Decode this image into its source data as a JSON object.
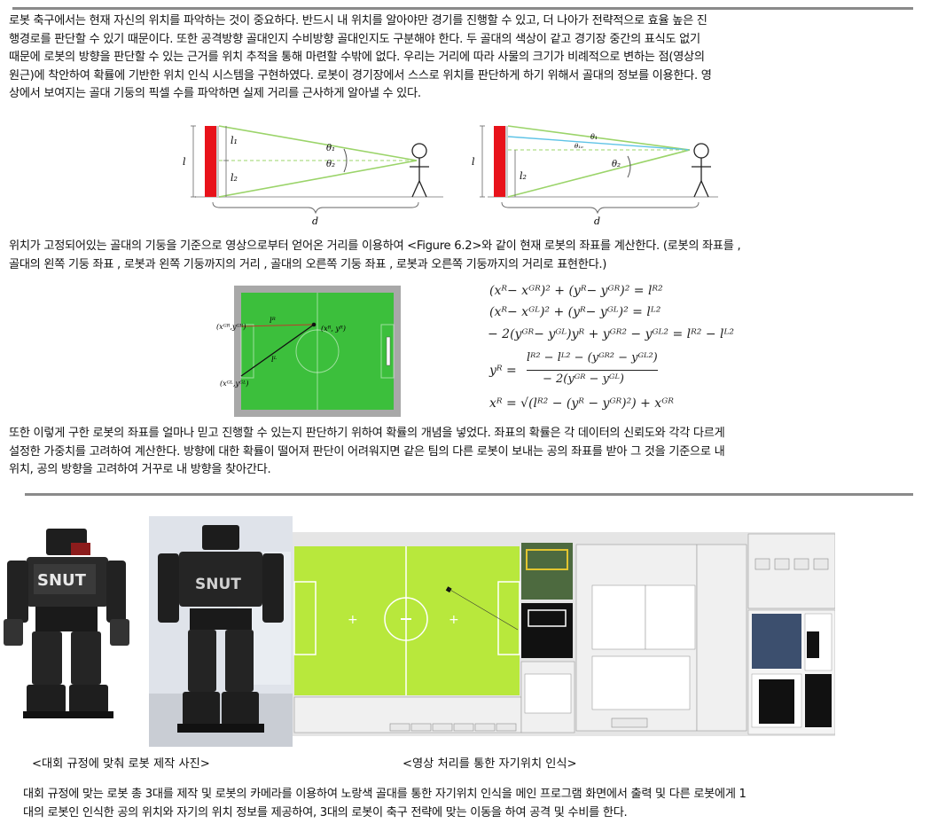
{
  "intro_text": "로봇 축구에서는 현재 자신의 위치를 파악하는 것이 중요하다. 반드시 내 위치를 알아야만 경기를 진행할 수 있고, 더 나아가 전략적으로 효율 높은 진\n행경로를 판단할 수 있기 때문이다. 또한 공격방향 골대인지 수비방향 골대인지도 구분해야 한다. 두 골대의 색상이 같고 경기장 중간의 표식도 없기\n때문에 로봇의 방향을 판단할 수 있는 근거를 위치 추적을 통해 마련할 수밖에 없다. 우리는 거리에 따라 사물의 크기가 비례적으로 변하는 점(영상의\n원근)에 착안하여 확률에 기반한 위치 인식 시스템을 구현하였다. 로봇이 경기장에서 스스로 위치를 판단하게 하기 위해서 골대의 정보를 이용한다. 영\n상에서 보여지는 골대 기둥의 픽셀 수를 파악하면 실제 거리를 근사하게 알아낼 수 있다.",
  "position_text": "위치가 고정되어있는 골대의 기둥을 기준으로 영상으로부터 얻어온 거리를 이용하여 <Figure 6.2>와 같이 현재 로봇의 좌표를 계산한다. (로봇의 좌표를 ,\n골대의 왼쪽 기둥 좌표 , 로봇과 왼쪽 기둥까지의 거리 , 골대의 오른쪽 기둥 좌표 , 로봇과 오른쪽 기둥까지의 거리로 표현한다.)",
  "probability_text": "또한 이렇게 구한 로봇의 좌표를 얼마나 믿고 진행할 수 있는지 판단하기 위하여 확률의 개념을 넣었다. 좌표의 확률은 각 데이터의 신뢰도와 각각 다르게\n설정한 가중치를 고려하여 계산한다. 방향에 대한 확률이 떨어져 판단이 어려워지면 같은 팀의 다른 로봇이 보내는 공의 좌표를 받아 그 것을 기준으로 내\n위치, 공의 방향을 고려하여 거꾸로 내 방향을 찾아간다.",
  "final_text": "대회 규정에 맞는 로봇 총 3대를 제작 및 로봇의 카메라를 이용하여 노랑색 골대를 통한 자기위치 인식을 메인 프로그램 화면에서 출력 및 다른 로봇에게 1\n대의 로봇인 인식한 공의 위치와 자기의 위치 정보를 제공하여, 3대의 로봇이 축구 전략에 맞는 이동을 하여 공격 및 수비를 한다.",
  "diagram1": {
    "l": "l",
    "l1": "l₁",
    "l2": "l₂",
    "theta1": "θ₁",
    "theta2": "θ₂",
    "d": "d"
  },
  "diagram2": {
    "l": "l",
    "l2": "l₂",
    "theta1": "θ₁",
    "theta_sub": "θ₁ₒ",
    "theta2": "θ₂",
    "d": "d"
  },
  "field_labels": {
    "goal_right": "(xᴳᴿ,yᴳᴿ)",
    "robot": "(xᴿ, yᴿ)",
    "goal_left": "(xᴳᴸ,yᴳᴸ)",
    "lR": "lᴿ",
    "lL": "lᴸ"
  },
  "equations": [
    "(xᴿ− xᴳᴿ)² + (yᴿ− yᴳᴿ)² = lᴿ²",
    "(xᴿ− xᴳᴸ)² + (yᴿ− yᴳᴸ)² = lᴸ²",
    "− 2(yᴳᴿ− yᴳᴸ)yᴿ + yᴳᴿ² − yᴳᴸ² = lᴿ² − lᴸ²",
    "xᴿ = √(lᴿ² − (yᴿ − yᴳᴿ)²) + xᴳᴿ"
  ],
  "eq_frac": {
    "lhs": "yᴿ =",
    "num": "lᴿ² − lᴸ² − (yᴳᴿ² − yᴳᴸ²)",
    "den": "− 2(yᴳᴿ − yᴳᴸ)"
  },
  "robot_logo": "SNUT",
  "caption_left": "<대회 규정에 맞춰 로봇 제작 사진>",
  "caption_right": "<영상 처리를 통한 자기위치 인식>",
  "colors": {
    "rule": "#8a8a8a",
    "field_green": "#3cbf3c",
    "ui_field": "#b8e83c",
    "goal_red": "#e8121a"
  }
}
